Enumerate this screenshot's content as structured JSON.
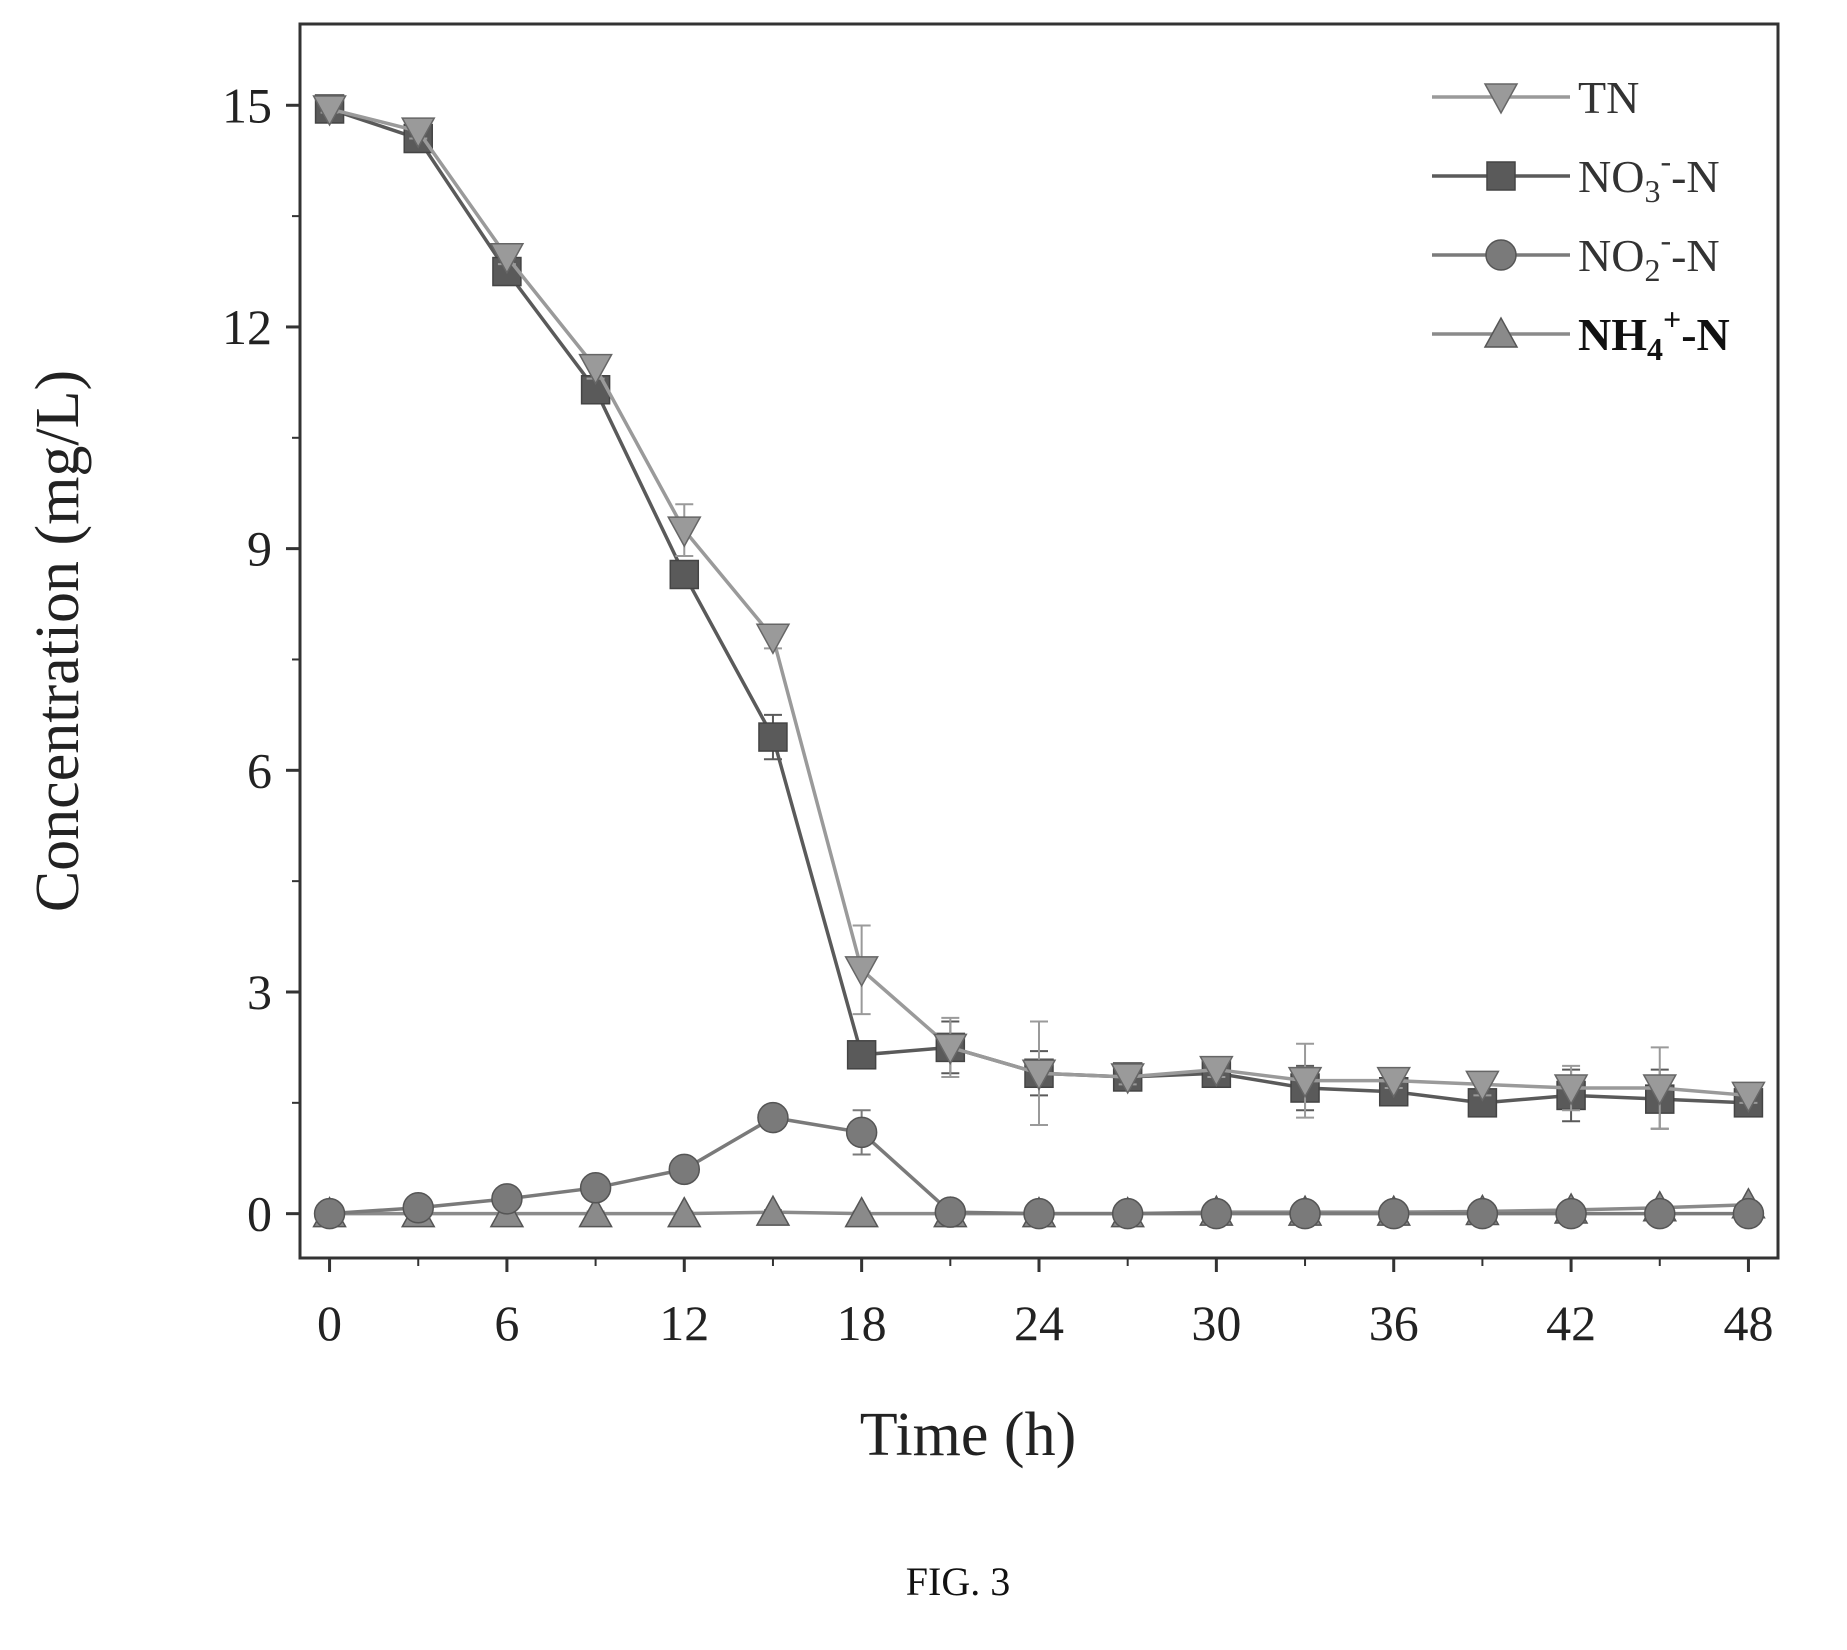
{
  "caption": "FIG. 3",
  "chart_data": {
    "type": "line",
    "xlabel": "Time (h)",
    "ylabel": "Concentration (mg/L)",
    "xlim": [
      -1,
      49
    ],
    "ylim": [
      -0.6,
      16.1
    ],
    "x_ticks": [
      0,
      6,
      12,
      18,
      24,
      30,
      36,
      42,
      48
    ],
    "y_ticks": [
      0,
      3,
      6,
      9,
      12,
      15
    ],
    "x_tick_labels": [
      "0",
      "6",
      "12",
      "18",
      "24",
      "30",
      "36",
      "42",
      "48"
    ],
    "y_tick_labels": [
      "0",
      "3",
      "6",
      "9",
      "12",
      "15"
    ],
    "legend_position": "top-right",
    "x": [
      0,
      3,
      6,
      9,
      12,
      15,
      18,
      21,
      24,
      27,
      30,
      33,
      36,
      39,
      42,
      45,
      48
    ],
    "series": [
      {
        "name": "TN",
        "legend": {
          "base": "TN",
          "sub": "",
          "sup": "",
          "suffix": ""
        },
        "bold": false,
        "marker": "triangle-down",
        "color": "#9a9a9a",
        "values": [
          14.95,
          14.65,
          12.95,
          11.45,
          9.25,
          7.8,
          3.3,
          2.25,
          1.9,
          1.85,
          1.95,
          1.8,
          1.8,
          1.75,
          1.7,
          1.7,
          1.6
        ],
        "errors": [
          0.05,
          0.1,
          0.1,
          0.15,
          0.35,
          0.15,
          0.6,
          0.4,
          0.7,
          0.1,
          0.1,
          0.5,
          0.1,
          0.15,
          0.3,
          0.55,
          0.1
        ]
      },
      {
        "name": "NO3--N",
        "legend": {
          "base": "NO",
          "sub": "3",
          "sup": "-",
          "suffix": "-N"
        },
        "bold": false,
        "marker": "square",
        "color": "#5a5a5a",
        "values": [
          14.95,
          14.55,
          12.75,
          11.15,
          8.65,
          6.45,
          2.15,
          2.25,
          1.9,
          1.85,
          1.9,
          1.7,
          1.65,
          1.5,
          1.6,
          1.55,
          1.5
        ],
        "errors": [
          0.05,
          0.1,
          0.1,
          0.1,
          0.15,
          0.3,
          0.1,
          0.35,
          0.3,
          0.1,
          0.1,
          0.3,
          0.1,
          0.1,
          0.35,
          0.4,
          0.1
        ]
      },
      {
        "name": "NO2--N",
        "legend": {
          "base": "NO",
          "sub": "2",
          "sup": "-",
          "suffix": "-N"
        },
        "bold": false,
        "marker": "circle",
        "color": "#7a7a7a",
        "values": [
          0.0,
          0.08,
          0.2,
          0.35,
          0.6,
          1.3,
          1.1,
          0.02,
          0.0,
          0.0,
          0.0,
          0.0,
          0.0,
          0.0,
          0.0,
          0.0,
          0.0
        ],
        "errors": [
          0.05,
          0.05,
          0.1,
          0.1,
          0.1,
          0.1,
          0.3,
          0.05,
          0.05,
          0.05,
          0.05,
          0.05,
          0.05,
          0.05,
          0.05,
          0.05,
          0.05
        ]
      },
      {
        "name": "NH4+-N",
        "legend": {
          "base": "NH",
          "sub": "4",
          "sup": "+",
          "suffix": "-N"
        },
        "bold": true,
        "marker": "triangle-up",
        "color": "#8a8a8a",
        "values": [
          0.0,
          0.0,
          0.0,
          0.0,
          0.0,
          0.02,
          0.0,
          0.0,
          0.0,
          0.0,
          0.02,
          0.02,
          0.02,
          0.03,
          0.05,
          0.08,
          0.12
        ],
        "errors": [
          0.03,
          0.03,
          0.03,
          0.03,
          0.03,
          0.03,
          0.03,
          0.03,
          0.03,
          0.03,
          0.03,
          0.03,
          0.03,
          0.03,
          0.03,
          0.03,
          0.03
        ]
      }
    ]
  }
}
